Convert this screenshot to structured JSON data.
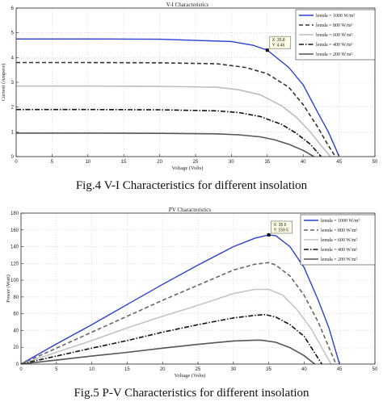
{
  "captions": {
    "fig4": "Fig.4 V-I Characteristics for different insolation",
    "fig5": "Fig.5 P-V Characteristics for different insolation"
  },
  "chart_data": [
    {
      "type": "line",
      "title": "V-I Characteristics",
      "xlabel": "Voltage (Volts)",
      "ylabel": "Current (Ampere)",
      "xlim": [
        0,
        50
      ],
      "ylim": [
        0,
        6
      ],
      "xticks": [
        0,
        5,
        10,
        15,
        20,
        25,
        30,
        35,
        40,
        45,
        50
      ],
      "yticks": [
        0,
        1,
        2,
        3,
        4,
        5,
        6
      ],
      "grid": true,
      "legend_position": "top-right",
      "series": [
        {
          "name": "lemda = 1000 W/m²",
          "color": "#2b3fd1",
          "dash": "solid",
          "x": [
            0,
            10,
            20,
            30,
            33,
            35,
            38,
            40,
            42,
            43.5,
            44.5,
            45
          ],
          "y": [
            4.75,
            4.75,
            4.74,
            4.65,
            4.5,
            4.3,
            3.6,
            2.9,
            1.8,
            1.0,
            0.35,
            0
          ]
        },
        {
          "name": "lemda = 800 W/m²",
          "color": "#333333",
          "dash": "dash",
          "x": [
            0,
            10,
            20,
            28,
            32,
            35,
            38,
            40,
            42,
            43.5,
            44.5
          ],
          "y": [
            3.8,
            3.8,
            3.79,
            3.75,
            3.6,
            3.35,
            2.8,
            2.1,
            1.2,
            0.45,
            0
          ]
        },
        {
          "name": "lemda = 600 W/m²",
          "color": "#bdbdbd",
          "dash": "solid",
          "x": [
            0,
            10,
            20,
            28,
            31,
            34,
            37,
            39,
            41,
            42.5,
            43.8
          ],
          "y": [
            2.85,
            2.85,
            2.84,
            2.8,
            2.7,
            2.5,
            2.05,
            1.6,
            1.0,
            0.45,
            0
          ]
        },
        {
          "name": "lemda = 400 W/m²",
          "color": "#111111",
          "dash": "dashdot",
          "x": [
            0,
            10,
            20,
            28,
            31,
            34,
            37,
            39,
            41,
            42.5
          ],
          "y": [
            1.9,
            1.9,
            1.89,
            1.85,
            1.78,
            1.62,
            1.3,
            0.95,
            0.5,
            0
          ]
        },
        {
          "name": "lemda = 200 W/m²",
          "color": "#555555",
          "dash": "solid",
          "x": [
            0,
            10,
            20,
            28,
            31,
            34,
            36,
            38,
            40,
            41.5
          ],
          "y": [
            0.95,
            0.95,
            0.94,
            0.92,
            0.88,
            0.8,
            0.68,
            0.5,
            0.25,
            0
          ]
        }
      ],
      "annotation": {
        "x": 35,
        "y": 4.3,
        "lines": [
          "X: 35.8",
          "Y: 4.46"
        ]
      }
    },
    {
      "type": "line",
      "title": "PV Characteristics",
      "xlabel": "Voltage (Volts)",
      "ylabel": "Power (Watt)",
      "xlim": [
        0,
        50
      ],
      "ylim": [
        0,
        180
      ],
      "xticks": [
        0,
        5,
        10,
        15,
        20,
        25,
        30,
        35,
        40,
        45,
        50
      ],
      "yticks": [
        0,
        20,
        40,
        60,
        80,
        100,
        120,
        140,
        160,
        180
      ],
      "grid": true,
      "legend_position": "top-right",
      "series": [
        {
          "name": "lemda = 1000 W/m²",
          "color": "#2b3fd1",
          "dash": "solid",
          "x": [
            0,
            5,
            10,
            15,
            20,
            25,
            30,
            33,
            35,
            36,
            38,
            40,
            42,
            43.5,
            45
          ],
          "y": [
            0,
            24,
            47,
            71,
            95,
            118,
            140,
            150,
            154,
            153,
            140,
            115,
            76,
            43,
            0
          ]
        },
        {
          "name": "lemda = 800 W/m²",
          "color": "#666666",
          "dash": "dash",
          "x": [
            0,
            5,
            10,
            15,
            20,
            25,
            30,
            33,
            35,
            36,
            38,
            40,
            42,
            44.5
          ],
          "y": [
            0,
            19,
            38,
            57,
            76,
            94,
            112,
            119,
            121,
            118,
            105,
            82,
            50,
            0
          ]
        },
        {
          "name": "lemda = 600 W/m²",
          "color": "#c4c4c4",
          "dash": "solid",
          "x": [
            0,
            5,
            10,
            15,
            20,
            25,
            30,
            33,
            35,
            37,
            39,
            41,
            43.8
          ],
          "y": [
            0,
            14,
            28,
            43,
            57,
            70,
            84,
            89,
            89,
            82,
            65,
            42,
            0
          ]
        },
        {
          "name": "lemda = 400 W/m²",
          "color": "#111111",
          "dash": "dashdot",
          "x": [
            0,
            5,
            10,
            15,
            20,
            25,
            30,
            33,
            34.5,
            36,
            38,
            40,
            42.5
          ],
          "y": [
            0,
            9.5,
            19,
            28,
            38,
            47,
            55,
            58,
            59,
            56,
            47,
            33,
            0
          ]
        },
        {
          "name": "lemda = 200 W/m²",
          "color": "#555555",
          "dash": "solid",
          "x": [
            0,
            5,
            10,
            15,
            20,
            25,
            30,
            33,
            34,
            36,
            38,
            40,
            41.5
          ],
          "y": [
            0,
            4.7,
            9.5,
            14,
            19,
            23.5,
            27.5,
            28.5,
            28.5,
            26,
            19.5,
            10,
            0
          ]
        }
      ],
      "annotation": {
        "x": 35,
        "y": 154,
        "lines": [
          "X: 35.6",
          "Y: 159.5"
        ]
      }
    }
  ]
}
